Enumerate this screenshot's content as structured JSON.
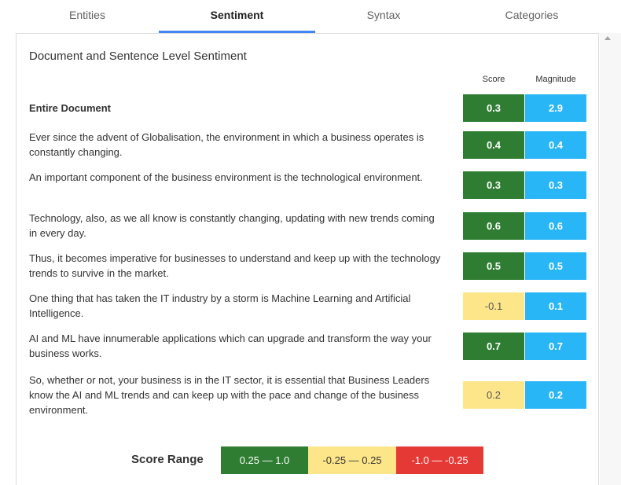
{
  "tabs": [
    {
      "label": "Entities",
      "active": false
    },
    {
      "label": "Sentiment",
      "active": true
    },
    {
      "label": "Syntax",
      "active": false
    },
    {
      "label": "Categories",
      "active": false
    }
  ],
  "panel": {
    "title": "Document and Sentence Level Sentiment",
    "col_score": "Score",
    "col_magnitude": "Magnitude"
  },
  "rows": [
    {
      "text": "Entire Document",
      "score": "0.3",
      "magnitude": "2.9"
    },
    {
      "text": "Ever since the advent of Globalisation, the environment in which a business operates is constantly changing.",
      "score": "0.4",
      "magnitude": "0.4"
    },
    {
      "text": "An important component of the business environment is the technological environment.",
      "score": "0.3",
      "magnitude": "0.3"
    },
    {
      "text": "Technology, also, as we all know is constantly changing, updating with new trends coming in every day.",
      "score": "0.6",
      "magnitude": "0.6"
    },
    {
      "text": "Thus, it becomes imperative for businesses to understand and keep up with the technology trends to survive in the market.",
      "score": "0.5",
      "magnitude": "0.5"
    },
    {
      "text": "One thing that has taken the IT industry by a storm is Machine Learning and Artificial Intelligence.",
      "score": "-0.1",
      "magnitude": "0.1"
    },
    {
      "text": "AI and ML have innumerable applications which can upgrade and transform the way your business works.",
      "score": "0.7",
      "magnitude": "0.7"
    },
    {
      "text": "So, whether or not, your business is in the IT sector, it is essential that Business Leaders know the AI and ML trends and can keep up with the pace and change of the business environment.",
      "score": "0.2",
      "magnitude": "0.2"
    }
  ],
  "legend": {
    "label": "Score Range",
    "positive": "0.25 — 1.0",
    "neutral": "-0.25 — 0.25",
    "negative": "-1.0 — -0.25"
  },
  "colors": {
    "positive": "#2e7d32",
    "neutral": "#fde68a",
    "negative": "#e53935",
    "magnitude": "#29b6f6",
    "tab_accent": "#4285f4"
  }
}
